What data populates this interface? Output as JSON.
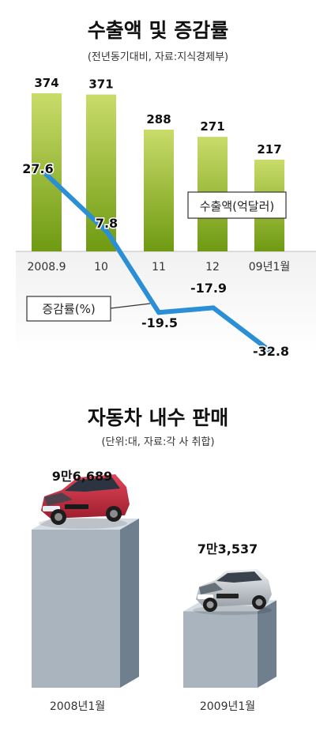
{
  "export_chart": {
    "title": "수출액 및 증감률",
    "subtitle": "(전년동기대비, 자료:지식경제부)",
    "bar_legend": "수출액(억달러)",
    "line_legend": "증감률(%)",
    "colors": {
      "bar_top": "#c9dc6a",
      "bar_bottom": "#6f9a12",
      "line": "#2b8fd6"
    }
  },
  "sales_chart": {
    "title": "자동차 내수 판매",
    "subtitle": "(단위:대, 자료:각 사 취합)",
    "colors": {
      "box_front": "#a9b4be",
      "box_side": "#6f7f8e",
      "box_top": "#d6dde4"
    }
  },
  "chart_data": [
    {
      "type": "bar",
      "title": "수출액 및 증감률",
      "categories": [
        "2008.9",
        "10",
        "11",
        "12",
        "09년1월"
      ],
      "series": [
        {
          "name": "수출액(억달러)",
          "type": "bar",
          "values": [
            374,
            371,
            288,
            271,
            217
          ]
        },
        {
          "name": "증감률(%)",
          "type": "line",
          "values": [
            27.6,
            7.8,
            -19.5,
            -17.9,
            -32.8
          ]
        }
      ],
      "value_labels": {
        "bar": [
          "374",
          "371",
          "288",
          "271",
          "217"
        ],
        "line": [
          "27.6",
          "7.8",
          "-19.5",
          "-17.9",
          "-32.8"
        ]
      }
    },
    {
      "type": "bar",
      "title": "자동차 내수 판매",
      "categories": [
        "2008년1월",
        "2009년1월"
      ],
      "values": [
        96689,
        73537
      ],
      "value_labels": [
        "9만6,689",
        "7만3,537"
      ]
    }
  ]
}
